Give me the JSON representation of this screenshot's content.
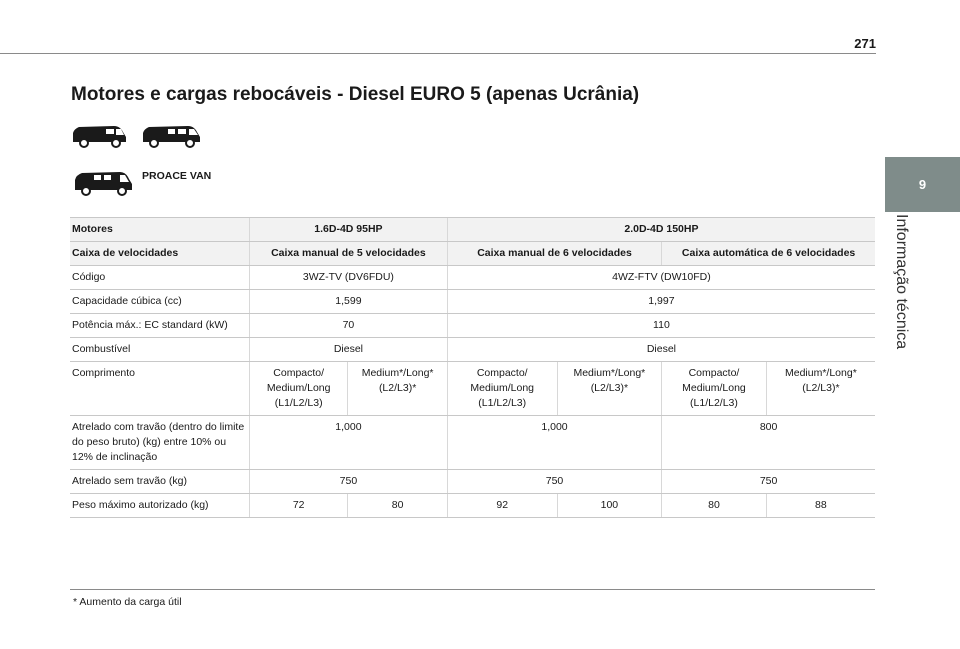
{
  "page": {
    "number": "271",
    "chapter_number": "9",
    "chapter_title": "Informação técnica"
  },
  "title": "Motores e cargas rebocáveis -  Diesel EURO 5 (apenas Ucrânia)",
  "vehicle": {
    "label": "PROACE VAN",
    "icon": "van-icon"
  },
  "table": {
    "engines": {
      "label": "Motores",
      "e1": "1.6D-4D 95HP",
      "e2": "2.0D-4D 150HP"
    },
    "gearbox": {
      "label": "Caixa de velocidades",
      "g1": "Caixa manual de 5 velocidades",
      "g2": "Caixa manual de 6 velocidades",
      "g3": "Caixa automática de 6 velocidades"
    },
    "code": {
      "label": "Código",
      "c1": "3WZ-TV (DV6FDU)",
      "c2": "4WZ-FTV (DW10FD)"
    },
    "capacity": {
      "label": "Capacidade cúbica (cc)",
      "c1": "1,599",
      "c2": "1,997"
    },
    "power": {
      "label": "Potência máx.: EC standard (kW)",
      "c1": "70",
      "c2": "110"
    },
    "fuel": {
      "label": "Combustível",
      "c1": "Diesel",
      "c2": "Diesel"
    },
    "length": {
      "label": "Comprimento",
      "v1": "Compacto/ Medium/Long (L1/L2/L3)",
      "v2": "Medium*/Long* (L2/L3)*",
      "v3": "Compacto/ Medium/Long (L1/L2/L3)",
      "v4": "Medium*/Long* (L2/L3)*",
      "v5": "Compacto/ Medium/Long (L1/L2/L3)",
      "v6": "Medium*/Long* (L2/L3)*"
    },
    "braked": {
      "label": "Atrelado com travão (dentro do limite do peso bruto) (kg) entre 10% ou 12% de inclinação",
      "b1": "1,000",
      "b2": "1,000",
      "b3": "800"
    },
    "unbraked": {
      "label": "Atrelado sem travão (kg)",
      "u1": "750",
      "u2": "750",
      "u3": "750"
    },
    "max_weight": {
      "label": "Peso máximo autorizado (kg)",
      "w1": "72",
      "w2": "80",
      "w3": "92",
      "w4": "100",
      "w5": "80",
      "w6": "88"
    }
  },
  "footnote": "*  Aumento da carga útil",
  "colors": {
    "tab": "#7f8c8a",
    "header_bg": "#f2f2f2",
    "rule": "#8a8a8a"
  }
}
